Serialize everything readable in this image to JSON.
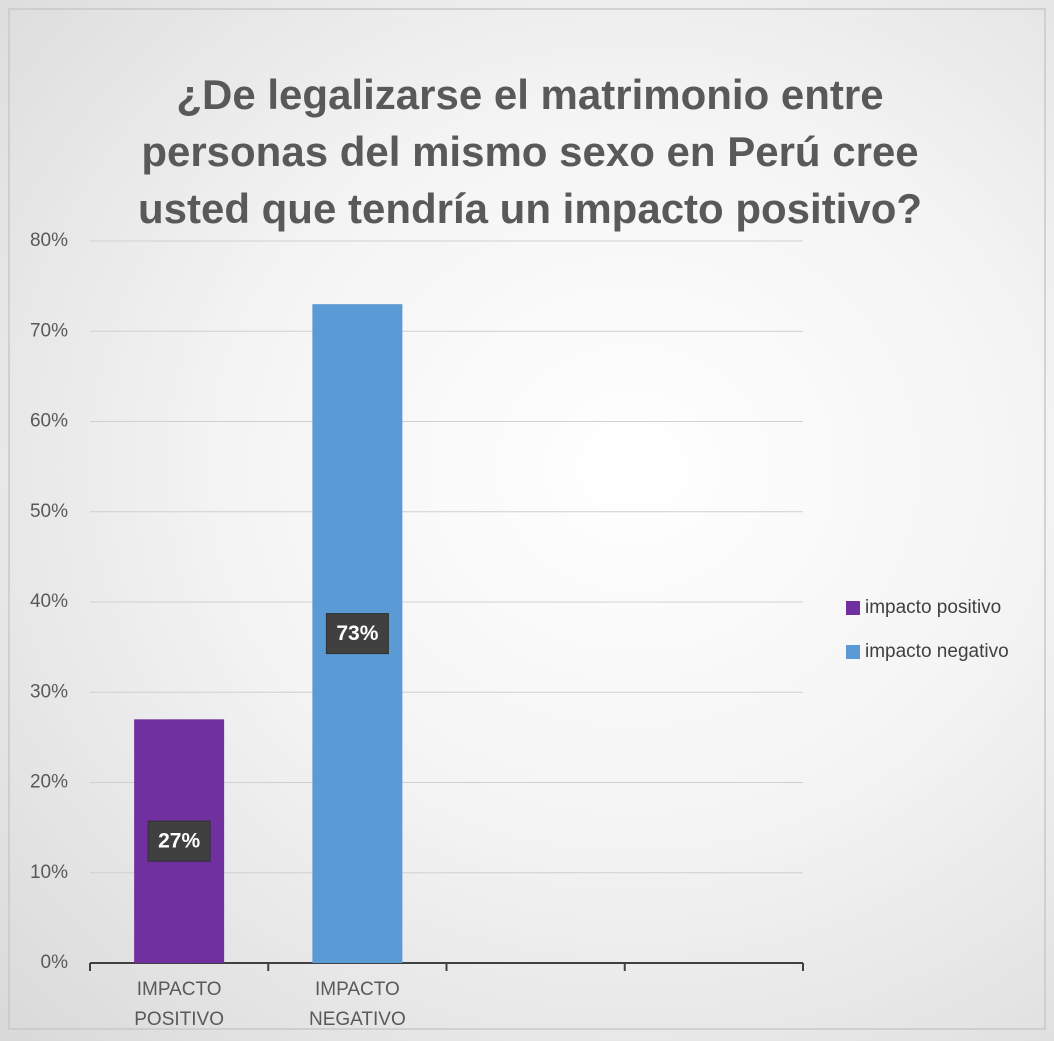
{
  "chart_data": {
    "type": "bar",
    "title": [
      "¿De legalizarse el matrimonio entre",
      "personas del mismo sexo en Perú cree",
      "usted que tendría un impacto positivo?"
    ],
    "categories": [
      "IMPACTO POSITIVO",
      "IMPACTO NEGATIVO",
      null,
      null
    ],
    "series": [
      {
        "name": "impacto positivo",
        "color": "#7030a0",
        "values": [
          27,
          null,
          null,
          null
        ],
        "value_labels": [
          "27%",
          null,
          null,
          null
        ]
      },
      {
        "name": "impacto negativo",
        "color": "#5b9bd5",
        "values": [
          null,
          73,
          null,
          null
        ],
        "value_labels": [
          null,
          "73%",
          null,
          null
        ]
      }
    ],
    "ylim": [
      0,
      80
    ],
    "yticks": [
      {
        "value": 0,
        "label": "0%"
      },
      {
        "value": 10,
        "label": "10%"
      },
      {
        "value": 20,
        "label": "20%"
      },
      {
        "value": 30,
        "label": "30%"
      },
      {
        "value": 40,
        "label": "40%"
      },
      {
        "value": 50,
        "label": "50%"
      },
      {
        "value": 60,
        "label": "60%"
      },
      {
        "value": 70,
        "label": "70%"
      },
      {
        "value": 80,
        "label": "80%"
      }
    ],
    "grid": true,
    "legend": "right"
  }
}
